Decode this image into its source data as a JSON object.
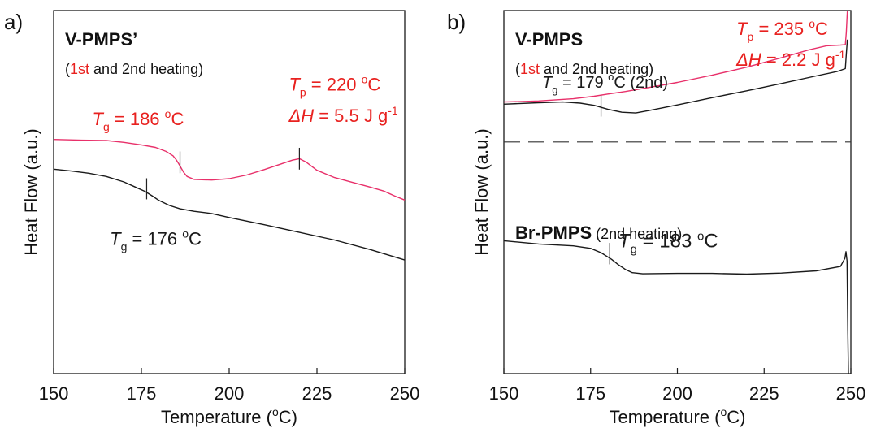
{
  "colors": {
    "first_heating": "#e8306a",
    "second_heating": "#1a1a1a",
    "label_red": "#e8211f",
    "axis": "#1a1a1a"
  },
  "chart_data": [
    {
      "panel_label": "a)",
      "type": "line",
      "xlim": [
        150,
        250
      ],
      "ylim": [
        0,
        1
      ],
      "x_ticks": [
        150,
        175,
        200,
        225,
        250
      ],
      "xlabel": "Temperature (",
      "xlabel_sup": "o",
      "xlabel_end": "C)",
      "ylabel": "Heat Flow (a.u.)",
      "title": "V-PMPS’",
      "subtitle": {
        "open": "(",
        "first": "1st",
        "rest": " and 2nd heating)"
      },
      "series": [
        {
          "color": "first_heating",
          "points": [
            [
              150,
              0.645
            ],
            [
              158,
              0.643
            ],
            [
              165,
              0.642
            ],
            [
              170,
              0.637
            ],
            [
              175,
              0.63
            ],
            [
              179,
              0.623
            ],
            [
              182,
              0.612
            ],
            [
              184,
              0.6
            ],
            [
              185,
              0.588
            ],
            [
              186,
              0.572
            ],
            [
              187,
              0.555
            ],
            [
              188,
              0.543
            ],
            [
              190,
              0.535
            ],
            [
              195,
              0.533
            ],
            [
              200,
              0.537
            ],
            [
              205,
              0.547
            ],
            [
              210,
              0.562
            ],
            [
              215,
              0.578
            ],
            [
              218,
              0.588
            ],
            [
              220,
              0.592
            ],
            [
              222,
              0.582
            ],
            [
              225,
              0.56
            ],
            [
              230,
              0.54
            ],
            [
              235,
              0.527
            ],
            [
              240,
              0.514
            ],
            [
              244,
              0.503
            ],
            [
              247,
              0.49
            ],
            [
              250,
              0.478
            ]
          ]
        },
        {
          "color": "second_heating",
          "points": [
            [
              150,
              0.563
            ],
            [
              155,
              0.558
            ],
            [
              160,
              0.552
            ],
            [
              165,
              0.543
            ],
            [
              170,
              0.528
            ],
            [
              173,
              0.515
            ],
            [
              176,
              0.502
            ],
            [
              178,
              0.49
            ],
            [
              180,
              0.477
            ],
            [
              183,
              0.463
            ],
            [
              186,
              0.454
            ],
            [
              190,
              0.447
            ],
            [
              195,
              0.441
            ],
            [
              200,
              0.43
            ],
            [
              210,
              0.41
            ],
            [
              220,
              0.389
            ],
            [
              230,
              0.368
            ],
            [
              240,
              0.342
            ],
            [
              250,
              0.313
            ]
          ]
        }
      ],
      "tick_marks": [
        {
          "x": 186,
          "y1": 0.552,
          "y2": 0.612
        },
        {
          "x": 220,
          "y1": 0.562,
          "y2": 0.622
        },
        {
          "x": 176.5,
          "y1": 0.48,
          "y2": 0.538
        }
      ],
      "annotations": [
        {
          "x": 161,
          "y": 0.685,
          "parts": [
            [
              "T",
              "italic",
              ""
            ],
            [
              "g",
              "sub",
              ""
            ],
            [
              " = 186 ",
              "",
              ""
            ],
            [
              "o",
              "sup",
              ""
            ],
            [
              "C",
              "",
              ""
            ]
          ],
          "color": "label_red",
          "size": 22
        },
        {
          "x": 217,
          "y": 0.78,
          "parts": [
            [
              "T",
              "italic",
              ""
            ],
            [
              "p",
              "sub",
              ""
            ],
            [
              " = 220 ",
              "",
              ""
            ],
            [
              "o",
              "sup",
              ""
            ],
            [
              "C",
              "",
              ""
            ]
          ],
          "color": "label_red",
          "size": 22
        },
        {
          "x": 217,
          "y": 0.693,
          "parts": [
            [
              "ΔH",
              "italic",
              ""
            ],
            [
              " = 5.5 J g",
              "",
              ""
            ],
            [
              "-1",
              "sup",
              ""
            ]
          ],
          "color": "label_red",
          "size": 22
        },
        {
          "x": 166,
          "y": 0.355,
          "parts": [
            [
              "T",
              "italic",
              ""
            ],
            [
              "g",
              "sub",
              ""
            ],
            [
              " = 176 ",
              "",
              ""
            ],
            [
              "o",
              "sup",
              ""
            ],
            [
              "C",
              "",
              ""
            ]
          ],
          "color": "second_heating",
          "size": 22
        }
      ]
    },
    {
      "panel_label": "b)",
      "type": "line",
      "xlim": [
        150,
        250
      ],
      "ylim": [
        0,
        1
      ],
      "x_ticks": [
        150,
        175,
        200,
        225,
        250
      ],
      "xlabel": "Temperature (",
      "xlabel_sup": "o",
      "xlabel_end": "C)",
      "ylabel": "Heat Flow (a.u.)",
      "title": "V-PMPS",
      "subtitle": {
        "open": "(",
        "first": "1st",
        "rest": " and 2nd heating)"
      },
      "second_title": "Br-PMPS",
      "second_subtitle": " (2nd heating)",
      "divider_y": 0.638,
      "series": [
        {
          "color": "first_heating",
          "points": [
            [
              150,
              0.748
            ],
            [
              160,
              0.751
            ],
            [
              170,
              0.757
            ],
            [
              176,
              0.764
            ],
            [
              180,
              0.77
            ],
            [
              185,
              0.777
            ],
            [
              190,
              0.785
            ],
            [
              200,
              0.802
            ],
            [
              210,
              0.822
            ],
            [
              220,
              0.844
            ],
            [
              230,
              0.87
            ],
            [
              238,
              0.892
            ],
            [
              243,
              0.903
            ],
            [
              247,
              0.905
            ],
            [
              248.4,
              0.906
            ],
            [
              248.7,
              0.94
            ],
            [
              249.0,
              1.0
            ]
          ]
        },
        {
          "color": "second_heating",
          "points": [
            [
              150,
              0.742
            ],
            [
              160,
              0.746
            ],
            [
              167,
              0.748
            ],
            [
              172,
              0.745
            ],
            [
              176,
              0.739
            ],
            [
              180,
              0.728
            ],
            [
              184,
              0.72
            ],
            [
              188,
              0.718
            ],
            [
              192,
              0.725
            ],
            [
              200,
              0.74
            ],
            [
              210,
              0.76
            ],
            [
              220,
              0.779
            ],
            [
              230,
              0.799
            ],
            [
              240,
              0.82
            ],
            [
              246,
              0.832
            ],
            [
              248.4,
              0.84
            ],
            [
              248.7,
              0.88
            ],
            [
              249.0,
              0.92
            ]
          ]
        },
        {
          "color": "second_heating",
          "points": [
            [
              150,
              0.366
            ],
            [
              160,
              0.357
            ],
            [
              170,
              0.352
            ],
            [
              175,
              0.345
            ],
            [
              178,
              0.333
            ],
            [
              181,
              0.315
            ],
            [
              183,
              0.3
            ],
            [
              185,
              0.287
            ],
            [
              187,
              0.278
            ],
            [
              190,
              0.275
            ],
            [
              200,
              0.276
            ],
            [
              210,
              0.276
            ],
            [
              220,
              0.274
            ],
            [
              230,
              0.277
            ],
            [
              240,
              0.283
            ],
            [
              247,
              0.295
            ],
            [
              248.3,
              0.318
            ],
            [
              248.6,
              0.336
            ],
            [
              248.9,
              0.31
            ],
            [
              249.1,
              0.12
            ],
            [
              249.3,
              0.0
            ]
          ]
        }
      ],
      "tick_marks": [
        {
          "x": 178,
          "y1": 0.708,
          "y2": 0.766
        },
        {
          "x": 180.5,
          "y1": 0.301,
          "y2": 0.36
        }
      ],
      "annotations": [
        {
          "x": 161,
          "y": 0.788,
          "parts": [
            [
              "T",
              "italic",
              ""
            ],
            [
              "g",
              "sub",
              ""
            ],
            [
              " = 179 ",
              "",
              ""
            ],
            [
              "o",
              "sup",
              ""
            ],
            [
              "C (2nd)",
              "",
              ""
            ]
          ],
          "color": "second_heating",
          "size": 20
        },
        {
          "x": 217,
          "y": 0.933,
          "parts": [
            [
              "T",
              "italic",
              ""
            ],
            [
              "p",
              "sub",
              ""
            ],
            [
              " = 235 ",
              "",
              ""
            ],
            [
              "o",
              "sup",
              ""
            ],
            [
              "C",
              "",
              ""
            ]
          ],
          "color": "label_red",
          "size": 22
        },
        {
          "x": 217,
          "y": 0.848,
          "parts": [
            [
              "ΔH",
              "italic",
              ""
            ],
            [
              " = 2.2 J g",
              "",
              ""
            ],
            [
              "-1",
              "sup",
              ""
            ]
          ],
          "color": "label_red",
          "size": 22
        },
        {
          "x": 183,
          "y": 0.348,
          "parts": [
            [
              "T",
              "italic",
              ""
            ],
            [
              "g",
              "sub",
              ""
            ],
            [
              " = 183 ",
              "",
              ""
            ],
            [
              "o",
              "sup",
              ""
            ],
            [
              "C",
              "",
              ""
            ]
          ],
          "color": "second_heating",
          "size": 24
        }
      ]
    }
  ]
}
